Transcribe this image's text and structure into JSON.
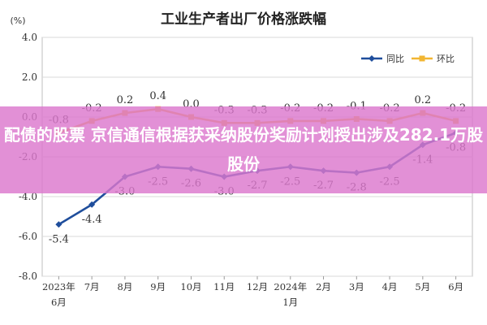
{
  "chart_data": {
    "type": "line",
    "title": "工业生产者出厂价格涨跌幅",
    "unit_label": "(%)",
    "ylim": [
      -8.0,
      4.0
    ],
    "yticks": [
      "4.0",
      "2.0",
      "0.0",
      "-2.0",
      "-4.0",
      "-6.0",
      "-8.0"
    ],
    "categories": [
      [
        "2023年",
        "6月"
      ],
      [
        "7月"
      ],
      [
        "8月"
      ],
      [
        "9月"
      ],
      [
        "10月"
      ],
      [
        "11月"
      ],
      [
        "12月"
      ],
      [
        "2024年",
        "1月"
      ],
      [
        "2月"
      ],
      [
        "3月"
      ],
      [
        "4月"
      ],
      [
        "5月"
      ],
      [
        "6月"
      ]
    ],
    "series": [
      {
        "name": "同比",
        "color": "#1f4e9c",
        "values": [
          -5.4,
          -4.4,
          -3.0,
          -2.5,
          -2.6,
          -3.0,
          -2.7,
          -2.5,
          -2.7,
          -2.8,
          -2.5,
          -1.4,
          -0.8
        ],
        "labels": [
          "-5.4",
          "-4.4",
          "-3.0",
          "-2.5",
          "-2.6",
          "-3.0",
          "-2.7",
          "-2.5",
          "-2.7",
          "-2.8",
          "-2.5",
          "-1.4",
          "-0.8"
        ]
      },
      {
        "name": "环比",
        "color": "#f2b632",
        "values": [
          -0.8,
          -0.2,
          0.2,
          0.4,
          0.0,
          -0.3,
          -0.3,
          -0.2,
          -0.2,
          -0.1,
          -0.2,
          0.2,
          -0.2
        ],
        "labels": [
          "-0.8",
          "-0.2",
          "0.2",
          "0.4",
          "0.0",
          "-0.3",
          "-0.3",
          "-0.2",
          "-0.2",
          "-0.1",
          "-0.2",
          "0.2",
          "-0.2"
        ]
      }
    ],
    "grid": true,
    "legend": "top-right"
  },
  "overlay": {
    "text": "配债的股票 京信通信根据获采纳股份奖励计划授出涉及282.1万股股份"
  }
}
